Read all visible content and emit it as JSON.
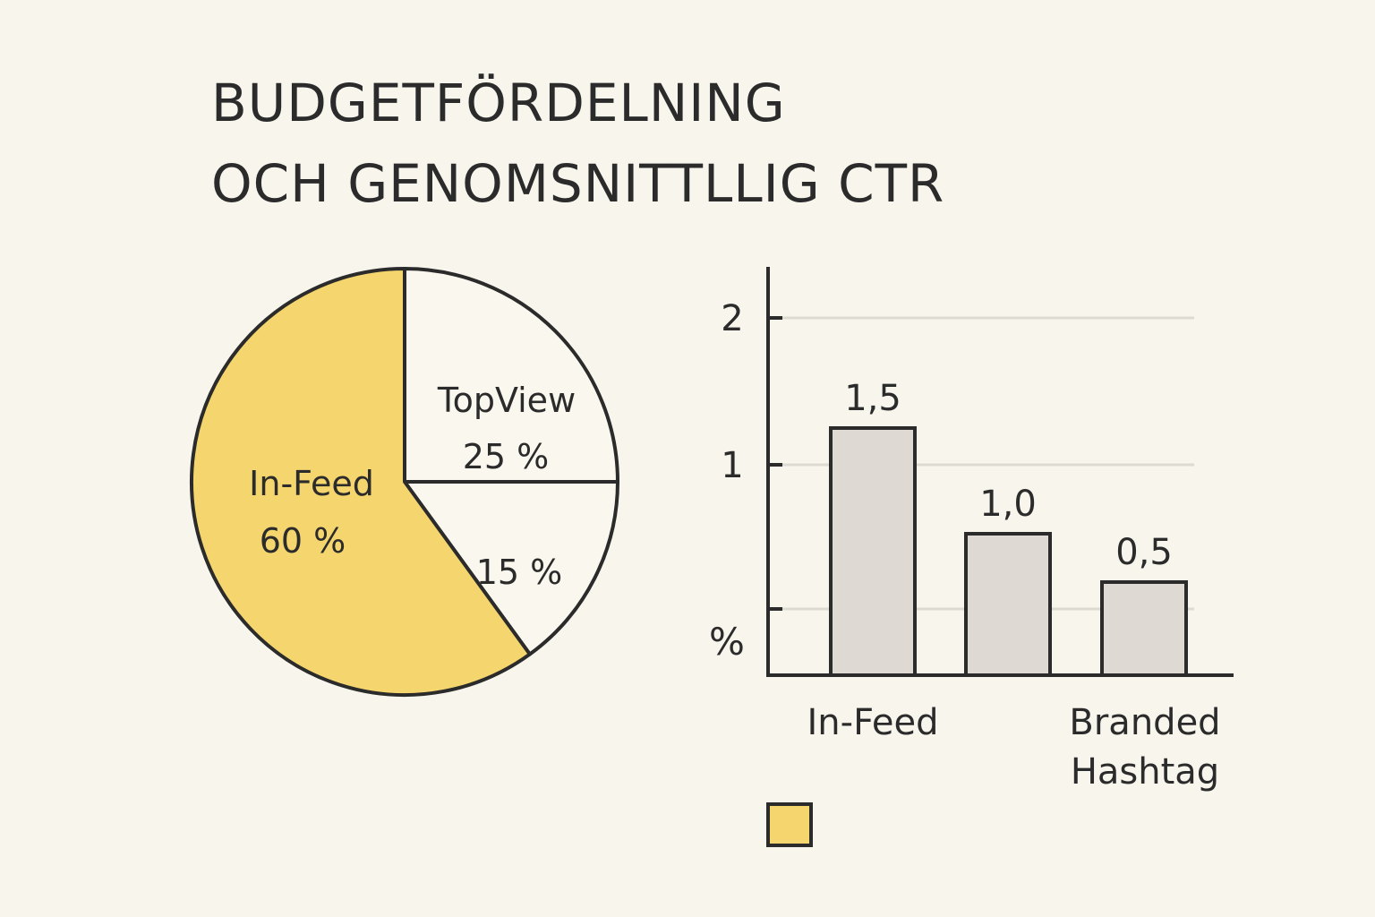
{
  "title_lines": [
    "BUDGETFÖRDELNING",
    "OCH GENOMSNITTLLIG CTR"
  ],
  "colors": {
    "background": "#f8f5ec",
    "accent": "#f5d66e",
    "pie_other": "#faf7ee",
    "bar_fill": "#dedad3",
    "stroke": "#2b2b2b",
    "grid": "#dddad2"
  },
  "chart_data": [
    {
      "type": "pie",
      "slices": [
        {
          "label": "In-Feed",
          "pct_label": "60 %",
          "value": 60,
          "color": "#f5d66e"
        },
        {
          "label": "TopView",
          "pct_label": "25 %",
          "value": 25,
          "color": "#faf7ee"
        },
        {
          "label": "",
          "pct_label": "15 %",
          "value": 15,
          "color": "#faf7ee"
        }
      ]
    },
    {
      "type": "bar",
      "ylabel": "%",
      "ylim": [
        0,
        2.3
      ],
      "yticks": [
        {
          "value": 2,
          "label": "2"
        },
        {
          "value": 1,
          "label": "1"
        },
        {
          "value": 0.5,
          "label": ""
        }
      ],
      "grid": true,
      "bars": [
        {
          "category": "In-Feed",
          "value": 1.5,
          "value_label": "1,5"
        },
        {
          "category": "",
          "value": 1.0,
          "value_label": "1,0"
        },
        {
          "category": "Branded Hashtag",
          "value": 0.5,
          "value_label": "0,5"
        }
      ],
      "category_labels": [
        {
          "lines": [
            "In-Feed"
          ]
        },
        {
          "lines": [
            "Branded",
            "Hashtag"
          ]
        }
      ],
      "legend_swatch_color": "#f5d66e"
    }
  ]
}
